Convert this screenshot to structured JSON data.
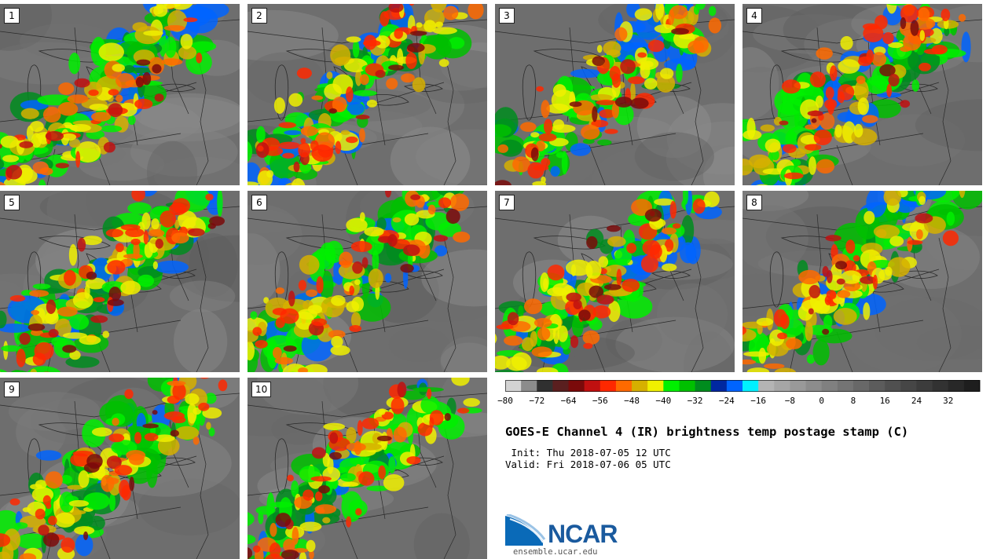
{
  "panels": [
    {
      "label": "1",
      "seed": 11
    },
    {
      "label": "2",
      "seed": 23
    },
    {
      "label": "3",
      "seed": 37
    },
    {
      "label": "4",
      "seed": 41
    },
    {
      "label": "5",
      "seed": 53
    },
    {
      "label": "6",
      "seed": 67
    },
    {
      "label": "7",
      "seed": 79
    },
    {
      "label": "8",
      "seed": 83
    },
    {
      "label": "9",
      "seed": 97
    },
    {
      "label": "10",
      "seed": 101
    }
  ],
  "colorbar": {
    "colors": [
      "#d3d3d3",
      "#8c8c8c",
      "#303030",
      "#5a1f1f",
      "#7a0a0a",
      "#c01010",
      "#ff2800",
      "#ff6a00",
      "#d6b000",
      "#f0f000",
      "#00f000",
      "#00c000",
      "#008c1e",
      "#0028a0",
      "#0064ff",
      "#00f0ff",
      "#b4b4b4",
      "#a6a6a6",
      "#999999",
      "#8c8c8c",
      "#808080",
      "#747474",
      "#686868",
      "#5c5c5c",
      "#505050",
      "#464646",
      "#3c3c3c",
      "#323232",
      "#282828",
      "#1e1e1e"
    ],
    "ticks": [
      "−80",
      "−72",
      "−64",
      "−56",
      "−48",
      "−40",
      "−32",
      "−24",
      "−16",
      "−8",
      "0",
      "8",
      "16",
      "24",
      "32"
    ]
  },
  "title": "GOES-E Channel 4 (IR) brightness temp postage stamp (C)",
  "init": " Init: Thu 2018-07-05 12 UTC",
  "valid": "Valid: Fri 2018-07-06 05 UTC",
  "logo": {
    "text": "NCAR",
    "site": "ensemble.ucar.edu"
  }
}
